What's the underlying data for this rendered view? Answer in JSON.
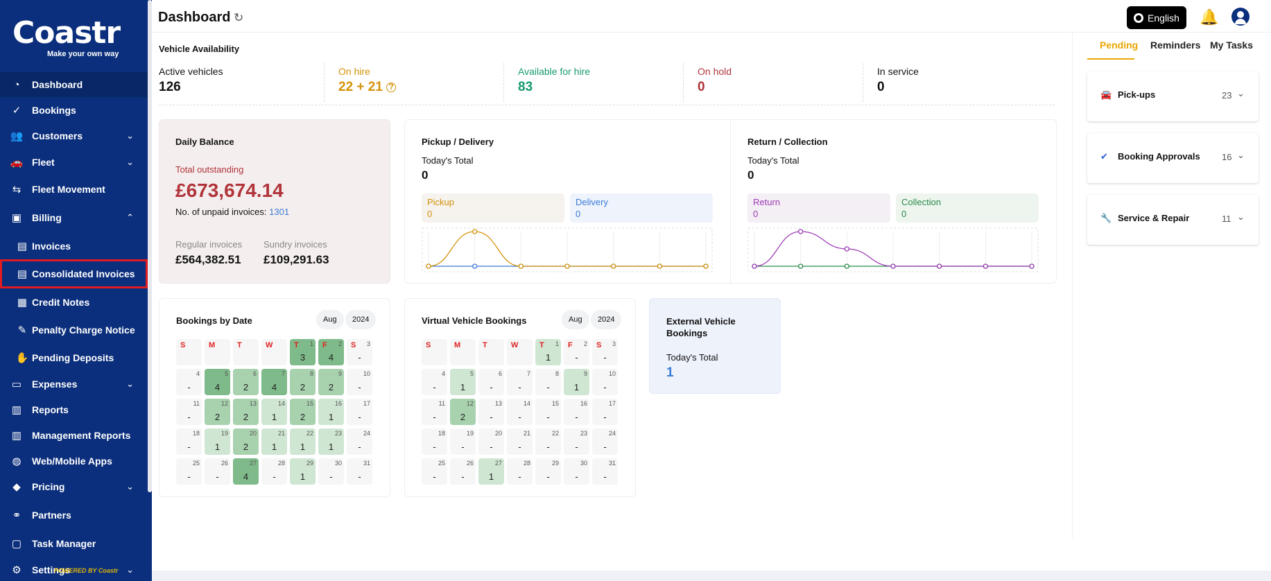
{
  "app": {
    "brand": "Coastr",
    "tagline": "Make your own way",
    "powered_by": "POWERED BY Coastr"
  },
  "sidebar": {
    "items": [
      {
        "label": "Dashboard",
        "icon": "dashboard-icon"
      },
      {
        "label": "Bookings",
        "icon": "check-circle-icon"
      },
      {
        "label": "Customers",
        "icon": "people-icon"
      },
      {
        "label": "Fleet",
        "icon": "car-icon"
      },
      {
        "label": "Fleet Movement",
        "icon": "movement-icon"
      },
      {
        "label": "Billing",
        "icon": "billing-icon"
      },
      {
        "label": "Invoices",
        "icon": "invoice-icon"
      },
      {
        "label": "Consolidated Invoices",
        "icon": "invoice-icon"
      },
      {
        "label": "Credit Notes",
        "icon": "credit-note-icon"
      },
      {
        "label": "Penalty Charge Notice",
        "icon": "penalty-icon"
      },
      {
        "label": "Pending Deposits",
        "icon": "deposit-icon"
      },
      {
        "label": "Expenses",
        "icon": "card-icon"
      },
      {
        "label": "Reports",
        "icon": "chart-icon"
      },
      {
        "label": "Management Reports",
        "icon": "chart-icon"
      },
      {
        "label": "Web/Mobile Apps",
        "icon": "globe-icon"
      },
      {
        "label": "Pricing",
        "icon": "tag-icon"
      },
      {
        "label": "Partners",
        "icon": "handshake-icon"
      },
      {
        "label": "Task Manager",
        "icon": "calendar-icon"
      },
      {
        "label": "Settings",
        "icon": "gear-icon"
      }
    ]
  },
  "header": {
    "title": "Dashboard",
    "language": "English"
  },
  "availability": {
    "title": "Vehicle Availability",
    "cells": [
      {
        "label": "Active vehicles",
        "value": "126",
        "color": "#111111"
      },
      {
        "label": "On hire",
        "value": "22 + 21",
        "color": "#d4920a"
      },
      {
        "label": "Available for hire",
        "value": "83",
        "color": "#179a6e"
      },
      {
        "label": "On hold",
        "value": "0",
        "color": "#b0343a"
      },
      {
        "label": "In service",
        "value": "0",
        "color": "#111111"
      }
    ]
  },
  "daily_balance": {
    "title": "Daily Balance",
    "total_label": "Total outstanding",
    "total_value": "£673,674.14",
    "unpaid_label": "No. of unpaid invoices:",
    "unpaid_value": "1301",
    "regular_label": "Regular invoices",
    "regular_value": "£564,382.51",
    "sundry_label": "Sundry invoices",
    "sundry_value": "£109,291.63"
  },
  "pickup_delivery": {
    "title": "Pickup / Delivery",
    "total_label": "Today's Total",
    "total_value": "0",
    "a_label": "Pickup",
    "a_value": "0",
    "a_color": "#d4920a",
    "a_bg": "#f6f2ee",
    "b_label": "Delivery",
    "b_value": "0",
    "b_color": "#3b7bd5",
    "b_bg": "#eef3fc"
  },
  "return_collection": {
    "title": "Return / Collection",
    "total_label": "Today's Total",
    "total_value": "0",
    "a_label": "Return",
    "a_value": "0",
    "a_color": "#9c3bb4",
    "a_bg": "#f4eef5",
    "b_label": "Collection",
    "b_value": "0",
    "b_color": "#2a8a4a",
    "b_bg": "#eef5ef"
  },
  "bookings_by_date": {
    "title": "Bookings by Date",
    "month": "Aug",
    "year": "2024"
  },
  "virtual_bookings": {
    "title": "Virtual Vehicle Bookings",
    "month": "Aug",
    "year": "2024"
  },
  "calendar": {
    "weekdays": [
      "S",
      "M",
      "T",
      "W",
      "T",
      "F",
      "S"
    ]
  },
  "external": {
    "title": "External Vehicle Bookings",
    "total_label": "Today's Total",
    "total_value": "1"
  },
  "right_panel": {
    "tabs": [
      "Pending",
      "Reminders",
      "My Tasks"
    ],
    "cards": [
      {
        "label": "Pick-ups",
        "count": "23",
        "icon": "car-icon"
      },
      {
        "label": "Booking Approvals",
        "count": "16",
        "icon": "check-circle-icon"
      },
      {
        "label": "Service & Repair",
        "count": "11",
        "icon": "wrench-icon"
      }
    ]
  },
  "chart_data": [
    {
      "type": "line",
      "title": "Pickup / Delivery",
      "x": [
        0,
        1,
        2,
        3,
        4,
        5,
        6
      ],
      "series": [
        {
          "name": "Pickup",
          "values": [
            0,
            1,
            0,
            0,
            0,
            0,
            0
          ],
          "color": "#d4920a"
        },
        {
          "name": "Delivery",
          "values": [
            0,
            0,
            0,
            0,
            0,
            0,
            0
          ],
          "color": "#3b7bd5"
        }
      ],
      "ylim": [
        0,
        1
      ]
    },
    {
      "type": "line",
      "title": "Return / Collection",
      "x": [
        0,
        1,
        2,
        3,
        4,
        5,
        6
      ],
      "series": [
        {
          "name": "Return",
          "values": [
            0,
            1,
            0.5,
            0,
            0,
            0,
            0
          ],
          "color": "#9c3bb4"
        },
        {
          "name": "Collection",
          "values": [
            0,
            0,
            0,
            0,
            0,
            0,
            0
          ],
          "color": "#2a8a4a"
        }
      ],
      "ylim": [
        0,
        1
      ]
    }
  ],
  "bookings_calendar": {
    "start_weekday": 4,
    "days": [
      {
        "d": 1,
        "v": "3"
      },
      {
        "d": 2,
        "v": "4"
      },
      {
        "d": 3,
        "v": "-"
      },
      {
        "d": 4,
        "v": "-"
      },
      {
        "d": 5,
        "v": "4"
      },
      {
        "d": 6,
        "v": "2"
      },
      {
        "d": 7,
        "v": "4"
      },
      {
        "d": 8,
        "v": "2"
      },
      {
        "d": 9,
        "v": "2"
      },
      {
        "d": 10,
        "v": "-"
      },
      {
        "d": 11,
        "v": "-"
      },
      {
        "d": 12,
        "v": "2"
      },
      {
        "d": 13,
        "v": "2"
      },
      {
        "d": 14,
        "v": "1"
      },
      {
        "d": 15,
        "v": "2"
      },
      {
        "d": 16,
        "v": "1"
      },
      {
        "d": 17,
        "v": "-"
      },
      {
        "d": 18,
        "v": "-"
      },
      {
        "d": 19,
        "v": "1"
      },
      {
        "d": 20,
        "v": "2"
      },
      {
        "d": 21,
        "v": "1"
      },
      {
        "d": 22,
        "v": "1"
      },
      {
        "d": 23,
        "v": "1"
      },
      {
        "d": 24,
        "v": "-"
      },
      {
        "d": 25,
        "v": "-"
      },
      {
        "d": 26,
        "v": "-"
      },
      {
        "d": 27,
        "v": "4"
      },
      {
        "d": 28,
        "v": "-"
      },
      {
        "d": 29,
        "v": "1"
      },
      {
        "d": 30,
        "v": "-"
      },
      {
        "d": 31,
        "v": "-"
      }
    ]
  },
  "virtual_calendar": {
    "start_weekday": 4,
    "days": [
      {
        "d": 1,
        "v": "1"
      },
      {
        "d": 2,
        "v": "-"
      },
      {
        "d": 3,
        "v": "-"
      },
      {
        "d": 4,
        "v": "-"
      },
      {
        "d": 5,
        "v": "1"
      },
      {
        "d": 6,
        "v": "-"
      },
      {
        "d": 7,
        "v": "-"
      },
      {
        "d": 8,
        "v": "-"
      },
      {
        "d": 9,
        "v": "1"
      },
      {
        "d": 10,
        "v": "-"
      },
      {
        "d": 11,
        "v": "-"
      },
      {
        "d": 12,
        "v": "2"
      },
      {
        "d": 13,
        "v": "-"
      },
      {
        "d": 14,
        "v": "-"
      },
      {
        "d": 15,
        "v": "-"
      },
      {
        "d": 16,
        "v": "-"
      },
      {
        "d": 17,
        "v": "-"
      },
      {
        "d": 18,
        "v": "-"
      },
      {
        "d": 19,
        "v": "-"
      },
      {
        "d": 20,
        "v": "-"
      },
      {
        "d": 21,
        "v": "-"
      },
      {
        "d": 22,
        "v": "-"
      },
      {
        "d": 23,
        "v": "-"
      },
      {
        "d": 24,
        "v": "-"
      },
      {
        "d": 25,
        "v": "-"
      },
      {
        "d": 26,
        "v": "-"
      },
      {
        "d": 27,
        "v": "1"
      },
      {
        "d": 28,
        "v": "-"
      },
      {
        "d": 29,
        "v": "-"
      },
      {
        "d": 30,
        "v": "-"
      },
      {
        "d": 31,
        "v": "-"
      }
    ]
  }
}
